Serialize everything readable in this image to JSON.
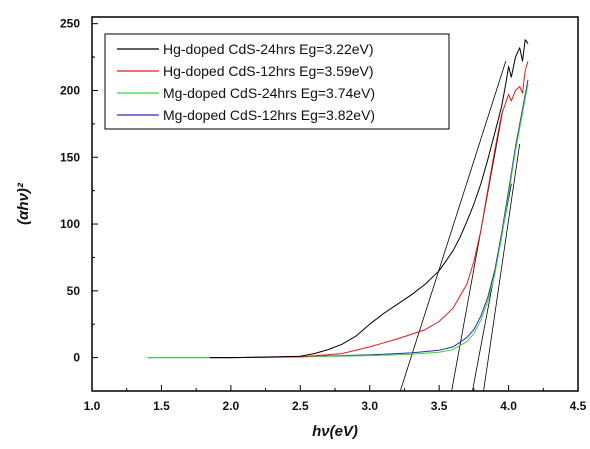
{
  "chart_data": {
    "type": "line",
    "xlabel": "hν(eV)",
    "ylabel": "(αhν)²",
    "xlim": [
      1.0,
      4.5
    ],
    "ylim": [
      -25,
      255
    ],
    "xticks": [
      1.0,
      1.5,
      2.0,
      2.5,
      3.0,
      3.5,
      4.0,
      4.5
    ],
    "xtick_labels": [
      "1.0",
      "1.5",
      "2.0",
      "2.5",
      "3.0",
      "3.5",
      "4.0",
      "4.5"
    ],
    "yticks": [
      0,
      50,
      100,
      150,
      200,
      250
    ],
    "ytick_labels": [
      "0",
      "50",
      "100",
      "150",
      "200",
      "250"
    ],
    "grid": false,
    "legend_position": "top-center",
    "series": [
      {
        "name": "Hg-doped CdS-24hrs Eg=3.22eV)",
        "color": "#000000",
        "x": [
          1.85,
          2.0,
          2.3,
          2.5,
          2.6,
          2.7,
          2.8,
          2.9,
          3.0,
          3.1,
          3.2,
          3.3,
          3.4,
          3.5,
          3.6,
          3.65,
          3.7,
          3.75,
          3.8,
          3.85,
          3.9,
          3.95,
          3.98,
          4.0,
          4.02,
          4.05,
          4.08,
          4.1,
          4.12,
          4.14
        ],
        "y": [
          0,
          0,
          0.5,
          1,
          3,
          6,
          10,
          16,
          25,
          33,
          40,
          47,
          55,
          65,
          80,
          90,
          102,
          115,
          130,
          148,
          168,
          188,
          205,
          218,
          210,
          225,
          232,
          222,
          238,
          235
        ]
      },
      {
        "name": "Hg-doped CdS-12hrs Eg=3.59eV)",
        "color": "#e8191b",
        "x": [
          1.85,
          2.0,
          2.5,
          2.8,
          3.0,
          3.2,
          3.4,
          3.5,
          3.6,
          3.7,
          3.75,
          3.8,
          3.85,
          3.9,
          3.95,
          4.0,
          4.02,
          4.05,
          4.08,
          4.1,
          4.12,
          4.14
        ],
        "y": [
          0,
          0,
          0.5,
          3,
          8,
          14,
          21,
          27,
          37,
          55,
          72,
          95,
          125,
          155,
          182,
          197,
          192,
          200,
          203,
          198,
          215,
          222
        ]
      },
      {
        "name": "Mg-doped CdS-24hrs Eg=3.74eV)",
        "color": "#39d63a",
        "x": [
          1.4,
          2.0,
          2.5,
          3.0,
          3.3,
          3.5,
          3.6,
          3.7,
          3.75,
          3.8,
          3.85,
          3.9,
          3.95,
          4.0,
          4.05,
          4.1,
          4.14
        ],
        "y": [
          0,
          0,
          0.5,
          1.5,
          2.5,
          4,
          6,
          12,
          18,
          28,
          42,
          62,
          90,
          122,
          155,
          183,
          205
        ]
      },
      {
        "name": "Mg-doped CdS-12hrs Eg=3.82eV)",
        "color": "#2b2bb5",
        "x": [
          1.4,
          2.0,
          2.5,
          3.0,
          3.3,
          3.5,
          3.6,
          3.7,
          3.75,
          3.8,
          3.85,
          3.9,
          3.95,
          4.0,
          4.05,
          4.1,
          4.14
        ],
        "y": [
          0,
          0,
          0.6,
          2,
          3.5,
          5.5,
          8,
          15,
          21,
          31,
          45,
          65,
          93,
          125,
          158,
          186,
          208
        ]
      }
    ],
    "tangent_lines": [
      {
        "x": [
          3.22,
          3.98
        ],
        "y": [
          -25,
          222
        ]
      },
      {
        "x": [
          3.59,
          3.96
        ],
        "y": [
          -25,
          186
        ]
      },
      {
        "x": [
          3.74,
          4.02
        ],
        "y": [
          -25,
          130
        ]
      },
      {
        "x": [
          3.82,
          4.08
        ],
        "y": [
          -25,
          160
        ]
      }
    ]
  }
}
